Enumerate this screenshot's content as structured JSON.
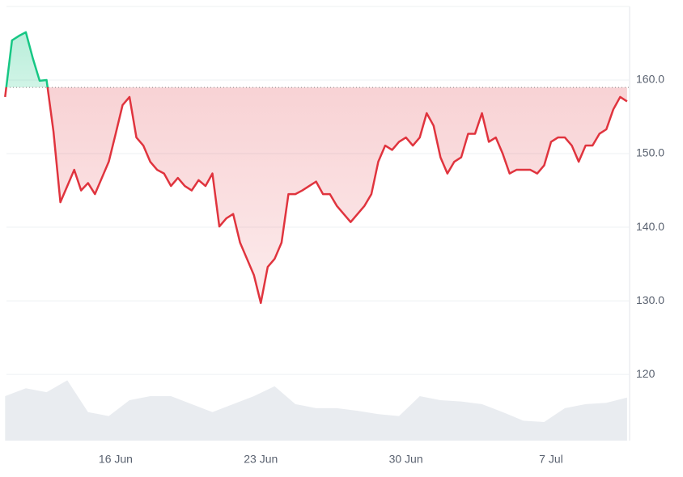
{
  "chart_data": {
    "type": "line",
    "categories": [
      null,
      null,
      null,
      null,
      null,
      null,
      null,
      null,
      null,
      null,
      null,
      null,
      null,
      null,
      null,
      null,
      "16 Jun",
      null,
      null,
      null,
      null,
      null,
      null,
      null,
      null,
      null,
      null,
      null,
      null,
      null,
      null,
      null,
      null,
      null,
      null,
      null,
      null,
      "23 Jun",
      null,
      null,
      null,
      null,
      null,
      null,
      null,
      null,
      null,
      null,
      null,
      null,
      null,
      null,
      null,
      null,
      null,
      null,
      null,
      null,
      "30 Jun",
      null,
      null,
      null,
      null,
      null,
      null,
      null,
      null,
      null,
      null,
      null,
      null,
      null,
      null,
      null,
      null,
      null,
      null,
      null,
      null,
      "7 Jul",
      null,
      null,
      null,
      null,
      null,
      null,
      null,
      null,
      null,
      null,
      null
    ],
    "series": [
      {
        "color": "#e0343e",
        "values": [
          157.7,
          165.4,
          166,
          166.5,
          163,
          159.9,
          160,
          153,
          143.4,
          145.6,
          147.8,
          145,
          146,
          144.5,
          146.7,
          148.9,
          152.7,
          156.6,
          157.7,
          152.2,
          151.1,
          148.9,
          147.8,
          147.3,
          145.6,
          146.7,
          145.6,
          145,
          146.4,
          145.6,
          147.3,
          140.1,
          141.2,
          141.8,
          137.9,
          135.7,
          133.5,
          129.7,
          134.6,
          135.7,
          137.9,
          144.5,
          144.5,
          145,
          145.6,
          146.2,
          144.5,
          144.5,
          142.9,
          141.8,
          140.7,
          141.8,
          142.9,
          144.5,
          148.9,
          151.1,
          150.5,
          151.6,
          152.2,
          151.1,
          152.2,
          155.5,
          153.8,
          149.5,
          147.3,
          148.9,
          149.5,
          152.7,
          152.7,
          155.5,
          151.6,
          152.2,
          150,
          147.3,
          147.8,
          147.8,
          147.8,
          147.3,
          148.4,
          151.6,
          152.2,
          152.2,
          151.1,
          148.9,
          151.1,
          151.1,
          152.7,
          153.3,
          156,
          157.7,
          157.1
        ]
      }
    ],
    "up_color": "#16c784",
    "down_color": "#e0343e",
    "reference_line": 159,
    "volume": {
      "color": "#e9ecf0",
      "lim": [
        0,
        100
      ],
      "values": [
        67,
        79,
        73,
        91,
        43,
        37,
        61,
        67,
        67,
        55,
        43,
        55,
        67,
        82,
        55,
        49,
        49,
        45,
        40,
        37,
        67,
        61,
        59,
        55,
        43,
        30,
        28,
        49,
        55,
        57,
        65
      ]
    },
    "ylim": [
      111,
      170
    ],
    "yticks": [
      {
        "value": 160,
        "label": "160.0"
      },
      {
        "value": 150,
        "label": "150.0"
      },
      {
        "value": 140,
        "label": "140.0"
      },
      {
        "value": 130,
        "label": "130.0"
      },
      120
    ],
    "grid": true
  }
}
